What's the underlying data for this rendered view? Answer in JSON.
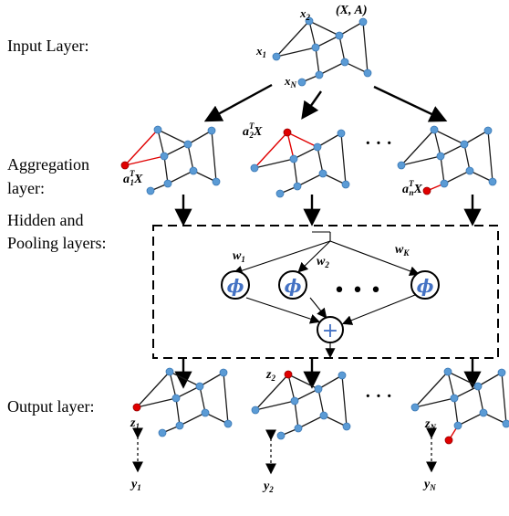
{
  "layer_labels": {
    "input": "Input Layer:",
    "aggregation_1": "Aggregation",
    "aggregation_2": "layer:",
    "hidden_1": "Hidden and",
    "hidden_2": "Pooling layers:",
    "output": "Output layer:"
  },
  "input_graph": {
    "label": "(X, A)",
    "node_x1": "x",
    "node_x1_sub": "1",
    "node_x2": "x",
    "node_x2_sub": "2",
    "node_xN": "x",
    "node_xN_sub": "N"
  },
  "aggregation": {
    "left_label": "a",
    "left_sup": "T",
    "left_sub": "1",
    "left_tail": "X",
    "mid_label": "a",
    "mid_sup": "T",
    "mid_sub": "2",
    "mid_tail": "X",
    "right_label": "a",
    "right_sup": "T",
    "right_sub": "n",
    "right_tail": "X",
    "ellipsis": "· · ·"
  },
  "hidden": {
    "w1": "w",
    "w1_sub": "1",
    "w2": "w",
    "w2_sub": "2",
    "wK": "w",
    "wK_sub": "K",
    "phi": "ϕ",
    "big_dots": "• • •",
    "plus": "+"
  },
  "output": {
    "z1": "z",
    "z1_sub": "1",
    "z2": "z",
    "z2_sub": "2",
    "zN": "z",
    "zN_sub": "N",
    "y1": "y",
    "y1_sub": "1",
    "y2": "y",
    "y2_sub": "2",
    "yN": "y",
    "yN_sub": "N",
    "ellipsis": "· · ·"
  },
  "colors": {
    "node": "#5b9bd5",
    "highlight": "#e00000",
    "symbol": "#4472c4"
  }
}
